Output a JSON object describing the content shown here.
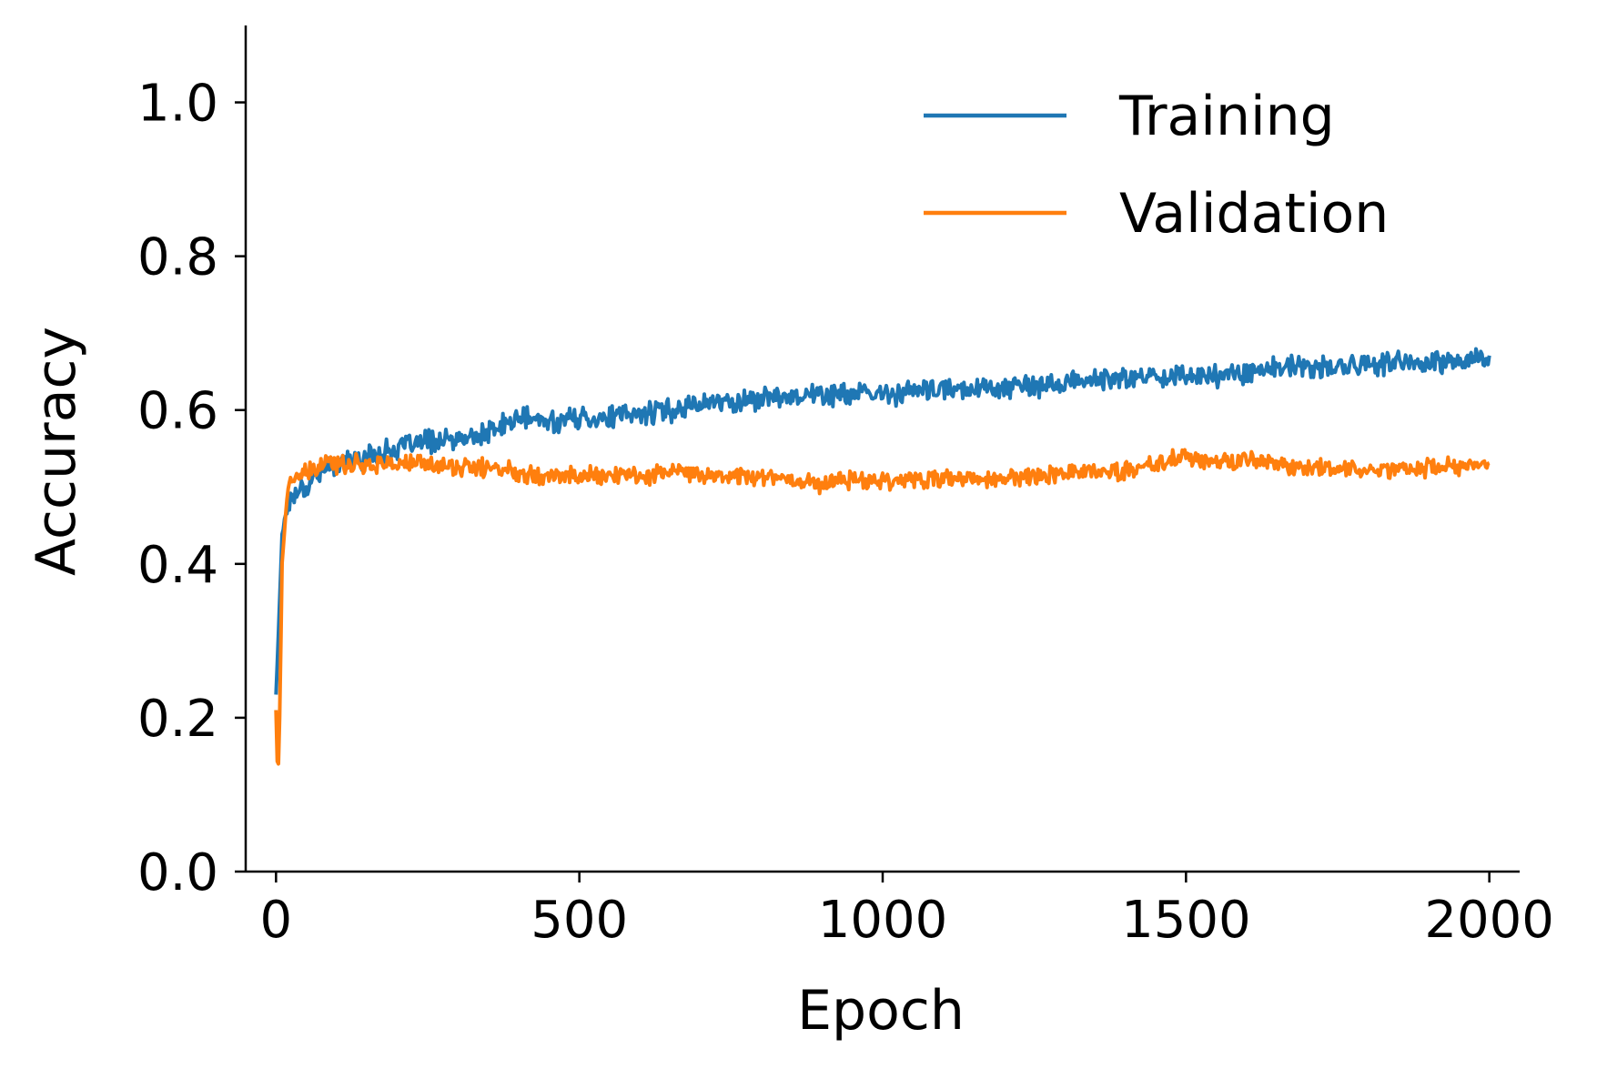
{
  "chart_data": {
    "type": "line",
    "title": "",
    "xlabel": "Epoch",
    "ylabel": "Accuracy",
    "xlim": [
      -50,
      2050
    ],
    "ylim": [
      0.0,
      1.1
    ],
    "xticks": [
      0,
      500,
      1000,
      1500,
      2000
    ],
    "xtick_labels": [
      "0",
      "500",
      "1000",
      "1500",
      "2000"
    ],
    "yticks": [
      0.0,
      0.2,
      0.4,
      0.6,
      0.8,
      1.0
    ],
    "ytick_labels": [
      "0.0",
      "0.2",
      "0.4",
      "0.6",
      "0.8",
      "1.0"
    ],
    "grid": false,
    "legend_position": "top-right",
    "series": [
      {
        "name": "Training",
        "color": "#1f77b4",
        "points": [
          [
            0,
            0.23
          ],
          [
            5,
            0.33
          ],
          [
            10,
            0.44
          ],
          [
            15,
            0.46
          ],
          [
            20,
            0.48
          ],
          [
            30,
            0.49
          ],
          [
            40,
            0.5
          ],
          [
            50,
            0.5
          ],
          [
            70,
            0.52
          ],
          [
            100,
            0.53
          ],
          [
            150,
            0.54
          ],
          [
            200,
            0.55
          ],
          [
            250,
            0.56
          ],
          [
            300,
            0.56
          ],
          [
            350,
            0.57
          ],
          [
            400,
            0.59
          ],
          [
            450,
            0.585
          ],
          [
            500,
            0.59
          ],
          [
            550,
            0.59
          ],
          [
            600,
            0.595
          ],
          [
            650,
            0.6
          ],
          [
            700,
            0.61
          ],
          [
            750,
            0.61
          ],
          [
            800,
            0.615
          ],
          [
            850,
            0.62
          ],
          [
            900,
            0.62
          ],
          [
            950,
            0.62
          ],
          [
            1000,
            0.62
          ],
          [
            1050,
            0.625
          ],
          [
            1100,
            0.625
          ],
          [
            1150,
            0.63
          ],
          [
            1200,
            0.63
          ],
          [
            1250,
            0.63
          ],
          [
            1300,
            0.635
          ],
          [
            1350,
            0.64
          ],
          [
            1400,
            0.64
          ],
          [
            1450,
            0.645
          ],
          [
            1500,
            0.645
          ],
          [
            1550,
            0.645
          ],
          [
            1600,
            0.65
          ],
          [
            1650,
            0.655
          ],
          [
            1700,
            0.655
          ],
          [
            1750,
            0.655
          ],
          [
            1800,
            0.66
          ],
          [
            1850,
            0.66
          ],
          [
            1900,
            0.66
          ],
          [
            1950,
            0.665
          ],
          [
            2000,
            0.665
          ]
        ]
      },
      {
        "name": "Validation",
        "color": "#ff7f0e",
        "points": [
          [
            0,
            0.21
          ],
          [
            3,
            0.11
          ],
          [
            6,
            0.2
          ],
          [
            10,
            0.4
          ],
          [
            15,
            0.46
          ],
          [
            20,
            0.5
          ],
          [
            30,
            0.51
          ],
          [
            40,
            0.515
          ],
          [
            60,
            0.52
          ],
          [
            80,
            0.53
          ],
          [
            100,
            0.53
          ],
          [
            150,
            0.53
          ],
          [
            200,
            0.53
          ],
          [
            250,
            0.53
          ],
          [
            300,
            0.525
          ],
          [
            350,
            0.525
          ],
          [
            400,
            0.52
          ],
          [
            450,
            0.515
          ],
          [
            500,
            0.515
          ],
          [
            550,
            0.515
          ],
          [
            600,
            0.515
          ],
          [
            650,
            0.52
          ],
          [
            700,
            0.515
          ],
          [
            750,
            0.515
          ],
          [
            800,
            0.515
          ],
          [
            850,
            0.51
          ],
          [
            900,
            0.505
          ],
          [
            950,
            0.51
          ],
          [
            1000,
            0.51
          ],
          [
            1050,
            0.51
          ],
          [
            1100,
            0.51
          ],
          [
            1150,
            0.51
          ],
          [
            1200,
            0.51
          ],
          [
            1250,
            0.515
          ],
          [
            1300,
            0.52
          ],
          [
            1350,
            0.52
          ],
          [
            1400,
            0.52
          ],
          [
            1450,
            0.53
          ],
          [
            1500,
            0.54
          ],
          [
            1550,
            0.53
          ],
          [
            1600,
            0.535
          ],
          [
            1650,
            0.53
          ],
          [
            1700,
            0.525
          ],
          [
            1750,
            0.525
          ],
          [
            1800,
            0.52
          ],
          [
            1850,
            0.525
          ],
          [
            1900,
            0.525
          ],
          [
            1950,
            0.525
          ],
          [
            2000,
            0.53
          ]
        ]
      }
    ]
  }
}
